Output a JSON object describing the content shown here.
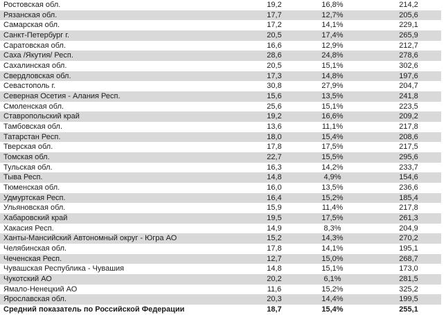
{
  "table": {
    "columns": [
      "region",
      "value1",
      "percent",
      "value3"
    ],
    "rows": [
      {
        "region": "Ростовская обл.",
        "value1": "19,2",
        "percent": "16,8%",
        "value3": "214,2"
      },
      {
        "region": "Рязанская обл.",
        "value1": "17,7",
        "percent": "12,7%",
        "value3": "205,6"
      },
      {
        "region": "Самарская обл.",
        "value1": "17,2",
        "percent": "14,1%",
        "value3": "229,1"
      },
      {
        "region": "Санкт-Петербург г.",
        "value1": "20,5",
        "percent": "17,4%",
        "value3": "265,9"
      },
      {
        "region": "Саратовская обл.",
        "value1": "16,6",
        "percent": "12,9%",
        "value3": "212,7"
      },
      {
        "region": "Саха /Якутия/ Респ.",
        "value1": "28,6",
        "percent": "24,8%",
        "value3": "278,6"
      },
      {
        "region": "Сахалинская обл.",
        "value1": "20,5",
        "percent": "15,1%",
        "value3": "302,6"
      },
      {
        "region": "Свердловская обл.",
        "value1": "17,3",
        "percent": "14,8%",
        "value3": "197,6"
      },
      {
        "region": "Севастополь г.",
        "value1": "30,8",
        "percent": "27,9%",
        "value3": "204,7"
      },
      {
        "region": "Северная Осетия - Алания Респ.",
        "value1": "15,6",
        "percent": "13,5%",
        "value3": "241,8"
      },
      {
        "region": "Смоленская обл.",
        "value1": "25,6",
        "percent": "15,1%",
        "value3": "223,5"
      },
      {
        "region": "Ставропольский край",
        "value1": "19,2",
        "percent": "16,6%",
        "value3": "209,2"
      },
      {
        "region": "Тамбовская обл.",
        "value1": "13,6",
        "percent": "11,1%",
        "value3": "217,8"
      },
      {
        "region": "Татарстан Респ.",
        "value1": "18,0",
        "percent": "15,4%",
        "value3": "208,6"
      },
      {
        "region": "Тверская обл.",
        "value1": "17,8",
        "percent": "17,5%",
        "value3": "217,5"
      },
      {
        "region": "Томская обл.",
        "value1": "22,7",
        "percent": "15,5%",
        "value3": "295,6"
      },
      {
        "region": "Тульская обл.",
        "value1": "16,3",
        "percent": "14,2%",
        "value3": "233,7"
      },
      {
        "region": "Тыва Респ.",
        "value1": "14,8",
        "percent": "4,9%",
        "value3": "154,6"
      },
      {
        "region": "Тюменская обл.",
        "value1": "16,0",
        "percent": "13,5%",
        "value3": "236,6"
      },
      {
        "region": "Удмуртская Респ.",
        "value1": "16,4",
        "percent": "15,2%",
        "value3": "185,4"
      },
      {
        "region": "Ульяновская обл.",
        "value1": "15,9",
        "percent": "11,4%",
        "value3": "217,8"
      },
      {
        "region": "Хабаровский край",
        "value1": "19,5",
        "percent": "17,5%",
        "value3": "261,3"
      },
      {
        "region": "Хакасия Респ.",
        "value1": "14,9",
        "percent": "8,3%",
        "value3": "204,9"
      },
      {
        "region": "Ханты-Мансийский Автономный округ - Югра АО",
        "value1": "15,2",
        "percent": "14,3%",
        "value3": "270,2"
      },
      {
        "region": "Челябинская обл.",
        "value1": "17,8",
        "percent": "14,1%",
        "value3": "195,1"
      },
      {
        "region": "Чеченская Респ.",
        "value1": "12,7",
        "percent": "15,0%",
        "value3": "268,7"
      },
      {
        "region": "Чувашская Республика - Чувашия",
        "value1": "14,8",
        "percent": "15,1%",
        "value3": "173,0"
      },
      {
        "region": "Чукотский АО",
        "value1": "20,2",
        "percent": "6,1%",
        "value3": "281,5"
      },
      {
        "region": "Ямало-Ненецкий АО",
        "value1": "11,6",
        "percent": "15,2%",
        "value3": "325,2"
      },
      {
        "region": "Ярославская обл.",
        "value1": "20,3",
        "percent": "14,4%",
        "value3": "199,5"
      }
    ],
    "summary_row": {
      "region": "Средний показатель по Российской Федерации",
      "value1": "18,7",
      "percent": "15,4%",
      "value3": "255,1"
    }
  },
  "colors": {
    "stripe": "#d9d9d9",
    "row_background": "#ffffff",
    "text": "#1d1d1d"
  }
}
